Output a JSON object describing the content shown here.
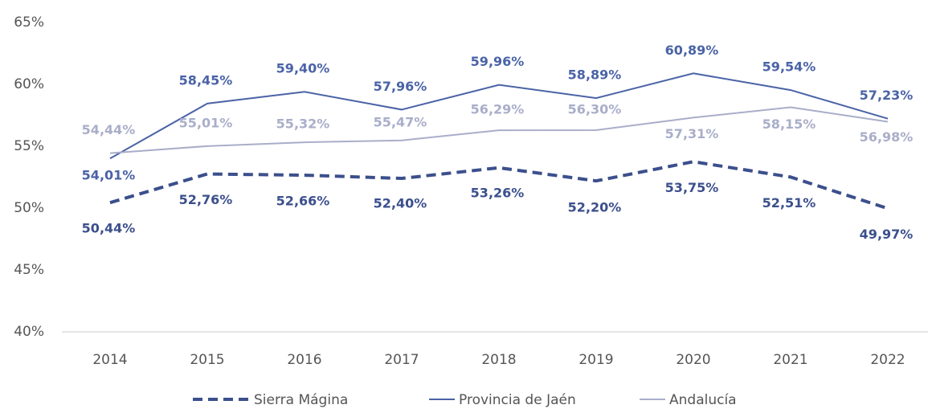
{
  "chart_data": {
    "type": "line",
    "categories": [
      "2014",
      "2015",
      "2016",
      "2017",
      "2018",
      "2019",
      "2020",
      "2021",
      "2022"
    ],
    "series": [
      {
        "name": "Sierra Mágina",
        "color": "#3b4f8c",
        "dashed": true,
        "values": [
          50.44,
          52.76,
          52.66,
          52.4,
          53.26,
          52.2,
          53.75,
          52.51,
          49.97
        ],
        "value_labels": [
          "50,44%",
          "52,76%",
          "52,66%",
          "52,40%",
          "53,26%",
          "52,20%",
          "53,75%",
          "52,51%",
          "49,97%"
        ]
      },
      {
        "name": "Provincia de Jaén",
        "color": "#4a63a6",
        "dashed": false,
        "values": [
          54.01,
          58.45,
          59.4,
          57.96,
          59.96,
          58.89,
          60.89,
          59.54,
          57.23
        ],
        "value_labels": [
          "54,01%",
          "58,45%",
          "59,40%",
          "57,96%",
          "59,96%",
          "58,89%",
          "60,89%",
          "59,54%",
          "57,23%"
        ]
      },
      {
        "name": "Andalucía",
        "color": "#a9aec9",
        "dashed": false,
        "values": [
          54.44,
          55.01,
          55.32,
          55.47,
          56.29,
          56.3,
          57.31,
          58.15,
          56.98
        ],
        "value_labels": [
          "54,44%",
          "55,01%",
          "55,32%",
          "55,47%",
          "56,29%",
          "56,30%",
          "57,31%",
          "58,15%",
          "56,98%"
        ]
      }
    ],
    "ylim": [
      40,
      65
    ],
    "yticks": [
      {
        "value": 40,
        "label": "40%"
      },
      {
        "value": 45,
        "label": "45%"
      },
      {
        "value": 50,
        "label": "50%"
      },
      {
        "value": 55,
        "label": "55%"
      },
      {
        "value": 60,
        "label": "60%"
      },
      {
        "value": 65,
        "label": "65%"
      }
    ],
    "grid": false,
    "legend": "bottom"
  }
}
